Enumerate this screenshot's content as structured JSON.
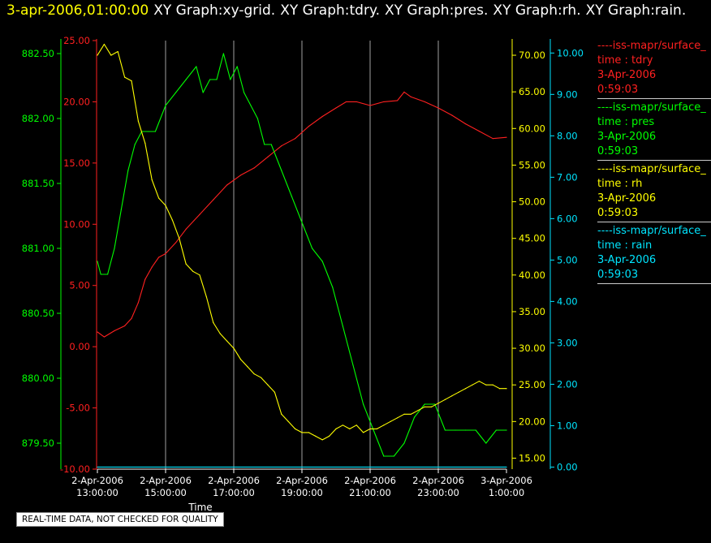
{
  "header": {
    "timestamp": "3-apr-2006,01:00:00",
    "graph_titles": [
      "XY Graph:xy-grid.",
      "XY Graph:tdry.",
      "XY Graph:pres.",
      "XY Graph:rh.",
      "XY Graph:rain."
    ]
  },
  "legend": [
    {
      "name": "tdry",
      "source": "----iss-mapr/surface_",
      "label": "time : tdry",
      "date": "3-Apr-2006",
      "time": "0:59:03",
      "color": "#ff2020"
    },
    {
      "name": "pres",
      "source": "----iss-mapr/surface_",
      "label": "time : pres",
      "date": "3-Apr-2006",
      "time": "0:59:03",
      "color": "#00ff00"
    },
    {
      "name": "rh",
      "source": "----iss-mapr/surface_",
      "label": "time : rh",
      "date": "3-Apr-2006",
      "time": "0:59:03",
      "color": "#ffff00"
    },
    {
      "name": "rain",
      "source": "----iss-mapr/surface_",
      "label": "time : rain",
      "date": "3-Apr-2006",
      "time": "0:59:03",
      "color": "#00e5ff"
    }
  ],
  "quality_note": "REAL-TIME DATA, NOT CHECKED FOR QUALITY",
  "chart_data": {
    "type": "line",
    "xlabel": "Time",
    "x_ticks": [
      {
        "date": "2-Apr-2006",
        "time": "13:00:00",
        "hour": 13
      },
      {
        "date": "2-Apr-2006",
        "time": "15:00:00",
        "hour": 15
      },
      {
        "date": "2-Apr-2006",
        "time": "17:00:00",
        "hour": 17
      },
      {
        "date": "2-Apr-2006",
        "time": "19:00:00",
        "hour": 19
      },
      {
        "date": "2-Apr-2006",
        "time": "21:00:00",
        "hour": 21
      },
      {
        "date": "2-Apr-2006",
        "time": "23:00:00",
        "hour": 23
      },
      {
        "date": "3-Apr-2006",
        "time": "1:00:00",
        "hour": 25
      }
    ],
    "xlim": [
      13,
      25
    ],
    "grid": "vertical",
    "axes": [
      {
        "id": "pres",
        "color": "#00ff00",
        "range": [
          879.3,
          882.6
        ],
        "ticks": [
          "882.50",
          "882.00",
          "881.50",
          "881.00",
          "880.50",
          "880.00",
          "879.50"
        ],
        "tick_values": [
          882.5,
          882.0,
          881.5,
          881.0,
          880.5,
          880.0,
          879.5
        ]
      },
      {
        "id": "tdry",
        "color": "#ff2020",
        "range": [
          -10,
          25
        ],
        "ticks": [
          "25.00",
          "20.00",
          "15.00",
          "10.00",
          "5.00",
          "0.00",
          "-5.00",
          "-10.00"
        ],
        "tick_values": [
          25,
          20,
          15,
          10,
          5,
          0,
          -5,
          -10
        ]
      },
      {
        "id": "rh",
        "color": "#ffff00",
        "range": [
          13.5,
          72
        ],
        "ticks": [
          "70.00",
          "65.00",
          "60.00",
          "55.00",
          "50.00",
          "45.00",
          "40.00",
          "35.00",
          "30.00",
          "25.00",
          "20.00",
          "15.00"
        ],
        "tick_values": [
          70,
          65,
          60,
          55,
          50,
          45,
          40,
          35,
          30,
          25,
          20,
          15
        ]
      },
      {
        "id": "rain",
        "color": "#00e5ff",
        "range": [
          -0.05,
          10.3
        ],
        "ticks": [
          "10.00",
          "9.00",
          "8.00",
          "7.00",
          "6.00",
          "5.00",
          "4.00",
          "3.00",
          "2.00",
          "1.00",
          "0.00"
        ],
        "tick_values": [
          10,
          9,
          8,
          7,
          6,
          5,
          4,
          3,
          2,
          1,
          0
        ]
      }
    ],
    "series": [
      {
        "name": "tdry",
        "axis": "tdry",
        "color": "#ff2020",
        "x": [
          13.0,
          13.2,
          13.5,
          13.8,
          14.0,
          14.2,
          14.4,
          14.6,
          14.8,
          15.0,
          15.3,
          15.6,
          16.0,
          16.4,
          16.8,
          17.2,
          17.6,
          18.0,
          18.4,
          18.8,
          19.2,
          19.6,
          20.0,
          20.3,
          20.6,
          21.0,
          21.4,
          21.8,
          22.0,
          22.2,
          22.6,
          23.0,
          23.4,
          23.8,
          24.2,
          24.6,
          25.0
        ],
        "y": [
          1.2,
          0.8,
          1.3,
          1.7,
          2.3,
          3.6,
          5.5,
          6.5,
          7.3,
          7.6,
          8.5,
          9.6,
          10.8,
          12.0,
          13.2,
          14.0,
          14.6,
          15.5,
          16.4,
          17.0,
          18.0,
          18.8,
          19.5,
          20.0,
          20.0,
          19.7,
          20.0,
          20.1,
          20.8,
          20.4,
          20.0,
          19.5,
          18.9,
          18.2,
          17.6,
          17.0,
          17.1
        ]
      },
      {
        "name": "pres",
        "axis": "pres",
        "color": "#00ff00",
        "x": [
          13.0,
          13.1,
          13.3,
          13.5,
          13.7,
          13.9,
          14.1,
          14.3,
          14.5,
          14.7,
          15.0,
          15.3,
          15.6,
          15.9,
          16.1,
          16.3,
          16.5,
          16.7,
          16.9,
          17.1,
          17.3,
          17.5,
          17.7,
          17.9,
          18.1,
          18.4,
          18.7,
          19.0,
          19.3,
          19.6,
          19.9,
          20.2,
          20.5,
          20.8,
          21.1,
          21.4,
          21.7,
          22.0,
          22.3,
          22.6,
          22.9,
          23.2,
          23.5,
          23.8,
          24.1,
          24.4,
          24.7,
          25.0
        ],
        "y": [
          880.9,
          880.8,
          880.8,
          881.0,
          881.3,
          881.6,
          881.8,
          881.9,
          881.9,
          881.9,
          882.1,
          882.2,
          882.3,
          882.4,
          882.2,
          882.3,
          882.3,
          882.5,
          882.3,
          882.4,
          882.2,
          882.1,
          882.0,
          881.8,
          881.8,
          881.6,
          881.4,
          881.2,
          881.0,
          880.9,
          880.7,
          880.4,
          880.1,
          879.8,
          879.6,
          879.4,
          879.4,
          879.5,
          879.7,
          879.8,
          879.8,
          879.6,
          879.6,
          879.6,
          879.6,
          879.5,
          879.6,
          879.6
        ]
      },
      {
        "name": "rh",
        "axis": "rh",
        "color": "#ffff00",
        "x": [
          13.0,
          13.2,
          13.4,
          13.6,
          13.8,
          14.0,
          14.2,
          14.4,
          14.6,
          14.8,
          15.0,
          15.2,
          15.4,
          15.6,
          15.8,
          16.0,
          16.2,
          16.4,
          16.6,
          16.8,
          17.0,
          17.2,
          17.4,
          17.6,
          17.8,
          18.0,
          18.2,
          18.4,
          18.6,
          18.8,
          19.0,
          19.2,
          19.4,
          19.6,
          19.8,
          20.0,
          20.2,
          20.4,
          20.6,
          20.8,
          21.0,
          21.2,
          21.4,
          21.6,
          21.8,
          22.0,
          22.2,
          22.4,
          22.6,
          22.8,
          23.0,
          23.2,
          23.4,
          23.6,
          23.8,
          24.0,
          24.2,
          24.4,
          24.6,
          24.8,
          25.0
        ],
        "y": [
          70.0,
          71.5,
          70.0,
          70.5,
          67.0,
          66.5,
          61.0,
          58.0,
          53.0,
          50.5,
          49.5,
          47.5,
          45.0,
          41.5,
          40.5,
          40.0,
          37.0,
          33.5,
          32.0,
          31.0,
          30.0,
          28.5,
          27.5,
          26.5,
          26.0,
          25.0,
          24.0,
          21.0,
          20.0,
          19.0,
          18.5,
          18.5,
          18.0,
          17.5,
          18.0,
          19.0,
          19.5,
          19.0,
          19.5,
          18.5,
          19.0,
          19.0,
          19.5,
          20.0,
          20.5,
          21.0,
          21.0,
          21.5,
          22.0,
          22.0,
          22.5,
          23.0,
          23.5,
          24.0,
          24.5,
          25.0,
          25.5,
          25.0,
          25.0,
          24.5,
          24.5
        ]
      },
      {
        "name": "rain",
        "axis": "rain",
        "color": "#00e5ff",
        "x": [
          13.0,
          25.0
        ],
        "y": [
          0.0,
          0.0
        ]
      }
    ]
  }
}
